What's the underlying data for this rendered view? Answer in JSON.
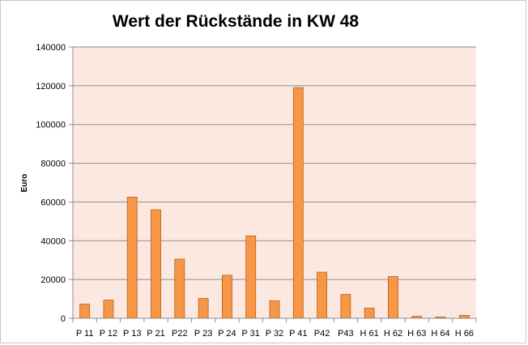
{
  "chart_data": {
    "type": "bar",
    "title": "Wert der Rückstände in KW 48",
    "xlabel": "",
    "ylabel": "Euro",
    "ylim": [
      0,
      140000
    ],
    "yticks": [
      0,
      20000,
      40000,
      60000,
      80000,
      100000,
      120000,
      140000
    ],
    "grid": true,
    "legend": "none",
    "categories": [
      "P 11",
      "P 12",
      "P 13",
      "P 21",
      "P22",
      "P 23",
      "P 24",
      "P 31",
      "P 32",
      "P 41",
      "P42",
      "P43",
      "H 61",
      "H 62",
      "H 63",
      "H 64",
      "H 66"
    ],
    "values": [
      7300,
      9400,
      62500,
      56000,
      30500,
      10200,
      22200,
      42500,
      9000,
      119000,
      23800,
      12300,
      5200,
      21500,
      1000,
      700,
      1500
    ],
    "colors": {
      "bar_fill": "#f79646",
      "bar_stroke": "#b85e12",
      "plot_background": "#fbe9e1",
      "gridline": "#8c8c8c",
      "axis": "#8c8c8c"
    }
  }
}
